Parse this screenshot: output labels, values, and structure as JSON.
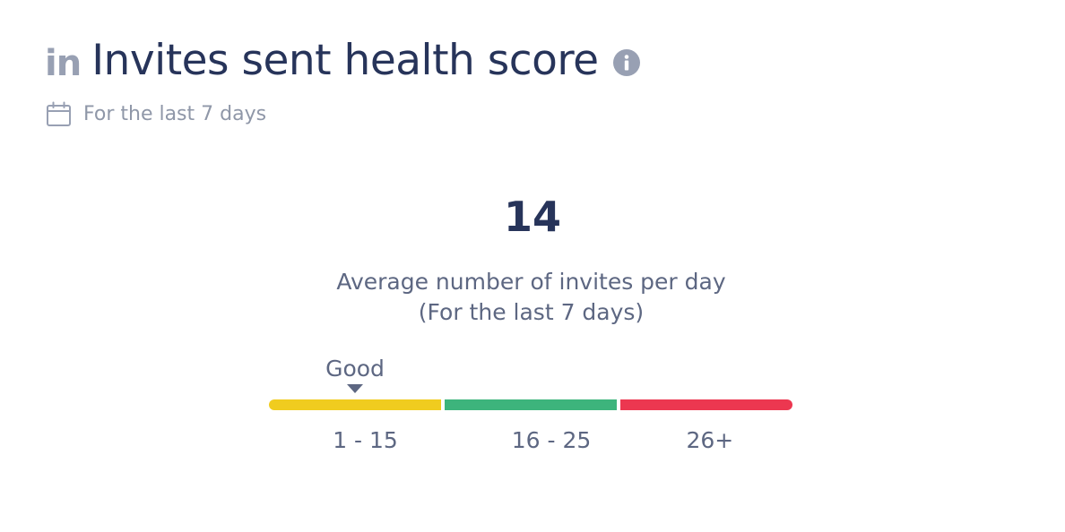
{
  "header": {
    "brand_icon_text": "in",
    "title": "Invites sent health score",
    "icons": {
      "brand": "linkedin-icon",
      "info": "info-icon"
    }
  },
  "period": {
    "label": "For the last 7 days",
    "icon": "calendar-icon"
  },
  "metric": {
    "value": "14",
    "caption_line1": "Average number of invites per day",
    "caption_line2": "(For the last 7 days)"
  },
  "gauge": {
    "status_label": "Good",
    "current_value": 14,
    "active_segment": 0,
    "segments": [
      {
        "label": "1 - 15",
        "color": "#f0cc1f"
      },
      {
        "label": "16 - 25",
        "color": "#3db47c"
      },
      {
        "label": "26+",
        "color": "#ec3750"
      }
    ]
  },
  "colors": {
    "title": "#27345a",
    "muted": "#8f97a8",
    "icon": "#98a0b3",
    "text": "#5d6782"
  }
}
